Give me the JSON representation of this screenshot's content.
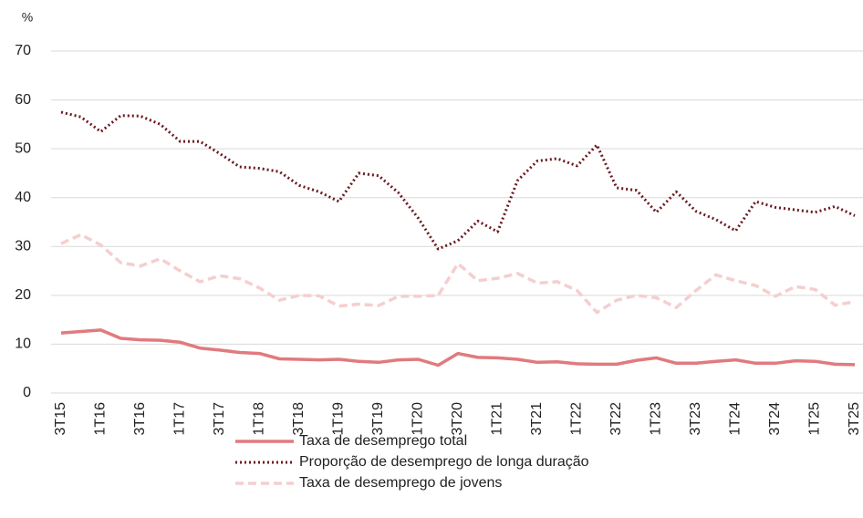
{
  "chart_data": {
    "type": "line",
    "y_axis_label": "%",
    "categories": [
      "3T15",
      null,
      "1T16",
      null,
      "3T16",
      null,
      "1T17",
      null,
      "3T17",
      null,
      "1T18",
      null,
      "3T18",
      null,
      "1T19",
      null,
      "3T19",
      null,
      "1T20",
      null,
      "3T20",
      null,
      "1T21",
      null,
      "3T21",
      null,
      "1T22",
      null,
      "3T22",
      null,
      "1T23",
      null,
      "3T23",
      null,
      "1T24",
      null,
      "3T24",
      null,
      "1T25",
      null,
      "3T25"
    ],
    "series": [
      {
        "name": "Taxa de desemprego total",
        "color": "#e07a7e",
        "style": "solid",
        "values": [
          12.3,
          12.6,
          12.9,
          11.2,
          10.9,
          10.8,
          10.4,
          9.2,
          8.8,
          8.3,
          8.1,
          7.0,
          6.9,
          6.8,
          6.9,
          6.5,
          6.3,
          6.8,
          6.9,
          5.7,
          8.1,
          7.3,
          7.2,
          6.9,
          6.3,
          6.4,
          6.0,
          5.9,
          5.9,
          6.7,
          7.2,
          6.1,
          6.1,
          6.5,
          6.8,
          6.1,
          6.1,
          6.6,
          6.5,
          5.9,
          5.8
        ]
      },
      {
        "name": "Proporção de desemprego de longa duração",
        "color": "#6b1a1f",
        "style": "dotted",
        "values": [
          57.5,
          56.5,
          53.5,
          56.8,
          56.7,
          55,
          51.5,
          51.5,
          49,
          46.3,
          46,
          45.3,
          42.5,
          41.2,
          39.2,
          45,
          44.5,
          41,
          35.8,
          29.5,
          31.2,
          35.2,
          33,
          43.5,
          47.5,
          48,
          46.5,
          50.8,
          42,
          41.5,
          37,
          41.2,
          37.2,
          35.5,
          33.2,
          39.2,
          38,
          37.5,
          37,
          38.2,
          36.3
        ]
      },
      {
        "name": "Taxa de desemprego de jovens",
        "color": "#f5cfd0",
        "style": "dashed",
        "values": [
          30.6,
          32.4,
          30.3,
          26.7,
          26,
          27.5,
          25,
          22.8,
          24,
          23.4,
          21.5,
          19,
          20,
          19.9,
          17.8,
          18.2,
          17.9,
          19.8,
          19.8,
          20,
          26.5,
          23,
          23.5,
          24.5,
          22.5,
          22.8,
          21,
          16.5,
          19,
          20,
          19.5,
          17.5,
          21,
          24.2,
          23,
          22,
          19.8,
          21.8,
          21.2,
          18,
          18.7
        ]
      }
    ],
    "ylim": [
      0,
      70
    ],
    "yticks": [
      0,
      10,
      20,
      30,
      40,
      50,
      60,
      70
    ],
    "grid": true
  }
}
